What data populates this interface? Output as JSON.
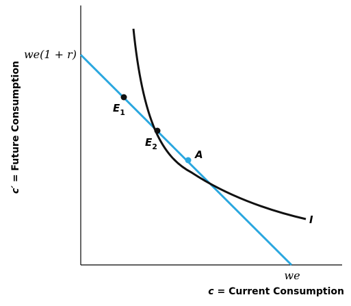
{
  "colors": {
    "budget_line": "#2aa7df",
    "indifference_curve": "#111111",
    "point_dark": "#111111",
    "point_optimum": "#2aa7df",
    "axis": "#000000"
  },
  "axes": {
    "y_title_var": "c′",
    "y_title_rest": " = Future Consumption",
    "x_title_var": "c",
    "x_title_rest": " = Current Consumption",
    "y_intercept_label": "we(1 + r)",
    "x_intercept_label": "we"
  },
  "curve": {
    "label": "I"
  },
  "points": [
    {
      "main": "E",
      "sub": "1"
    },
    {
      "main": "E",
      "sub": "2"
    },
    {
      "main": "A",
      "sub": ""
    }
  ]
}
